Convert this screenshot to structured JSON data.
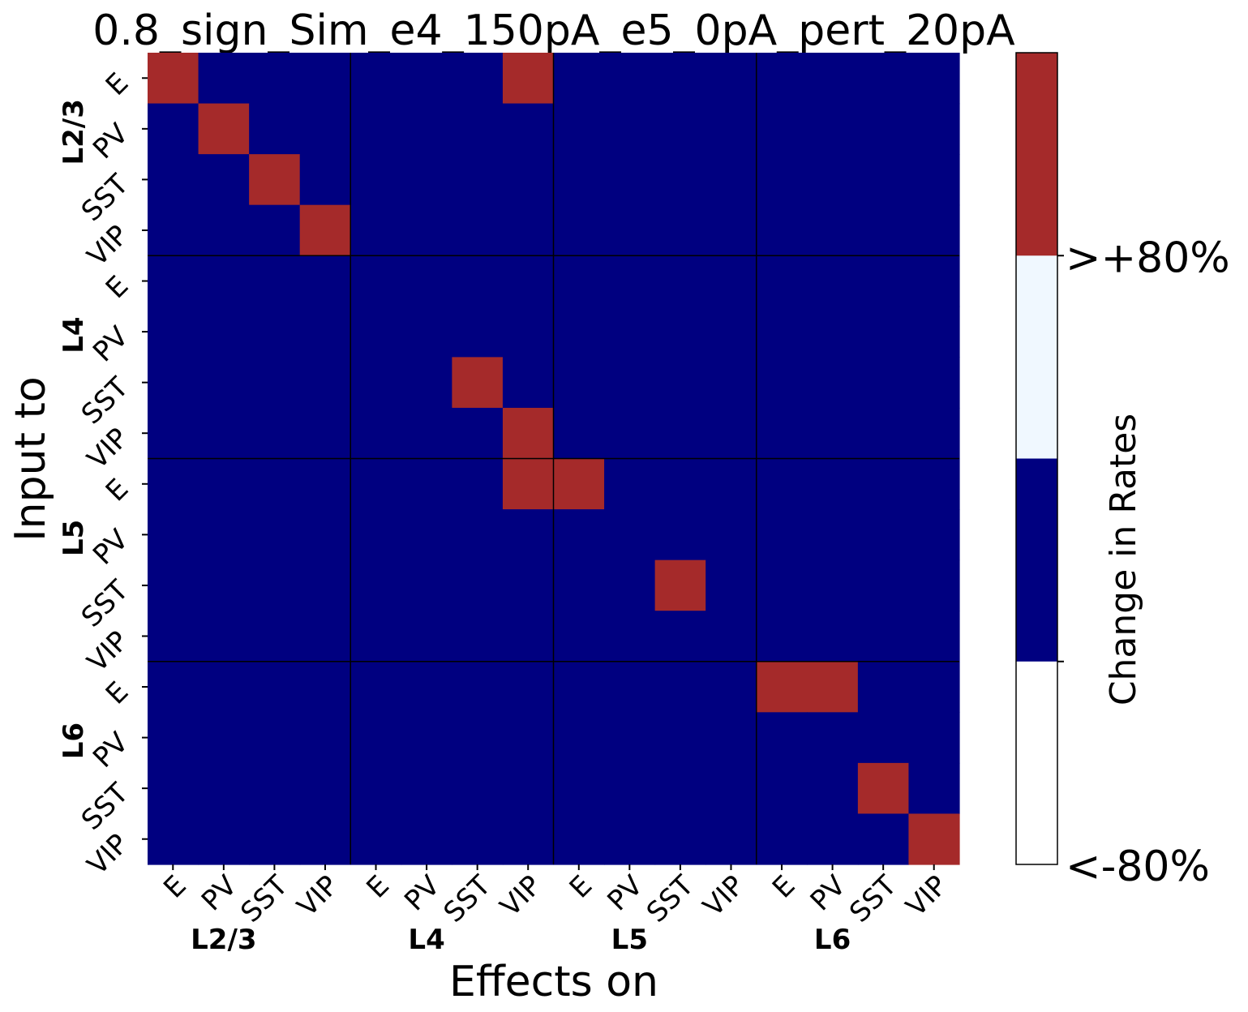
{
  "chart_data": {
    "type": "heatmap",
    "title": "0.8_sign_Sim_e4_150pA_e5_0pA_pert_20pA",
    "xlabel": "Effects on",
    "ylabel": "Input to",
    "groups": [
      "L2/3",
      "L4",
      "L5",
      "L6"
    ],
    "cell_types": [
      "E",
      "PV",
      "SST",
      "VIP"
    ],
    "x_tick_labels": [
      "E",
      "PV",
      "SST",
      "VIP",
      "E",
      "PV",
      "SST",
      "VIP",
      "E",
      "PV",
      "SST",
      "VIP",
      "E",
      "PV",
      "SST",
      "VIP"
    ],
    "y_tick_labels": [
      "E",
      "PV",
      "SST",
      "VIP",
      "E",
      "PV",
      "SST",
      "VIP",
      "E",
      "PV",
      "SST",
      "VIP",
      "E",
      "PV",
      "SST",
      "VIP"
    ],
    "matrix": [
      [
        1,
        0,
        0,
        0,
        0,
        0,
        0,
        1,
        0,
        0,
        0,
        0,
        0,
        0,
        0,
        0
      ],
      [
        0,
        1,
        0,
        0,
        0,
        0,
        0,
        0,
        0,
        0,
        0,
        0,
        0,
        0,
        0,
        0
      ],
      [
        0,
        0,
        1,
        0,
        0,
        0,
        0,
        0,
        0,
        0,
        0,
        0,
        0,
        0,
        0,
        0
      ],
      [
        0,
        0,
        0,
        1,
        0,
        0,
        0,
        0,
        0,
        0,
        0,
        0,
        0,
        0,
        0,
        0
      ],
      [
        0,
        0,
        0,
        0,
        0,
        0,
        0,
        0,
        0,
        0,
        0,
        0,
        0,
        0,
        0,
        0
      ],
      [
        0,
        0,
        0,
        0,
        0,
        0,
        0,
        0,
        0,
        0,
        0,
        0,
        0,
        0,
        0,
        0
      ],
      [
        0,
        0,
        0,
        0,
        0,
        0,
        1,
        0,
        0,
        0,
        0,
        0,
        0,
        0,
        0,
        0
      ],
      [
        0,
        0,
        0,
        0,
        0,
        0,
        0,
        1,
        0,
        0,
        0,
        0,
        0,
        0,
        0,
        0
      ],
      [
        0,
        0,
        0,
        0,
        0,
        0,
        0,
        1,
        1,
        0,
        0,
        0,
        0,
        0,
        0,
        0
      ],
      [
        0,
        0,
        0,
        0,
        0,
        0,
        0,
        0,
        0,
        0,
        0,
        0,
        0,
        0,
        0,
        0
      ],
      [
        0,
        0,
        0,
        0,
        0,
        0,
        0,
        0,
        0,
        0,
        1,
        0,
        0,
        0,
        0,
        0
      ],
      [
        0,
        0,
        0,
        0,
        0,
        0,
        0,
        0,
        0,
        0,
        0,
        0,
        0,
        0,
        0,
        0
      ],
      [
        0,
        0,
        0,
        0,
        0,
        0,
        0,
        0,
        0,
        0,
        0,
        0,
        1,
        1,
        0,
        0
      ],
      [
        0,
        0,
        0,
        0,
        0,
        0,
        0,
        0,
        0,
        0,
        0,
        0,
        0,
        0,
        0,
        0
      ],
      [
        0,
        0,
        0,
        0,
        0,
        0,
        0,
        0,
        0,
        0,
        0,
        0,
        0,
        0,
        1,
        0
      ],
      [
        0,
        0,
        0,
        0,
        0,
        0,
        0,
        0,
        0,
        0,
        0,
        0,
        0,
        0,
        0,
        1
      ]
    ],
    "colormap": {
      "0": "#000080",
      "1": "#a52a2a"
    },
    "colorbar": {
      "label": "Change in Rates",
      "tick_labels": [
        ">+80%",
        "<-80%"
      ],
      "bands_top_to_bottom": [
        "#a52a2a",
        "#f0f8ff",
        "#000080",
        "#ffffff"
      ]
    },
    "grid_line_color": "#000000",
    "legend": "none"
  }
}
